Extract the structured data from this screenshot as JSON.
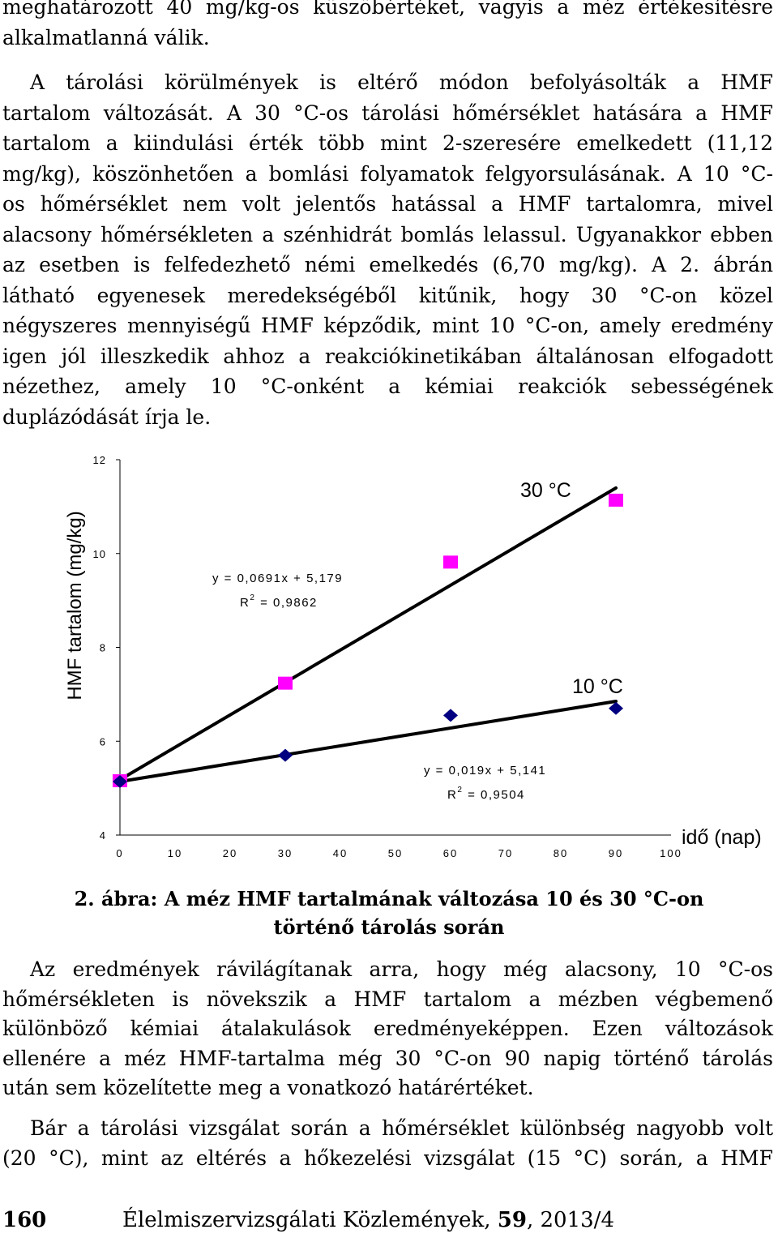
{
  "paragraph1": [
    "meghatározott 40 mg/kg-os küszöbértéket, vagyis a méz értékesítésre",
    "alkalmatlanná válik."
  ],
  "paragraph2": [
    "A tárolási körülmények is eltérő módon befolyásolták a HMF",
    "tartalom változását. A 30 °C-os tárolási hőmérséklet hatására a HMF",
    "tartalom a kiindulási érték több mint 2-szeresére emelkedett (11,12",
    "mg/kg), köszönhetően a bomlási folyamatok felgyorsulásának. A 10 °C-",
    "os hőmérséklet nem volt jelentős hatással a HMF tartalomra, mivel",
    "alacsony hőmérsékleten a szénhidrát bomlás lelassul. Ugyanakkor ebben",
    "az esetben is felfedezhető némi emelkedés (6,70 mg/kg). A 2. ábrán",
    "látható egyenesek meredekségéből kitűnik, hogy 30 °C-on közel",
    "négyszeres mennyiségű HMF képződik, mint 10 °C-on, amely eredmény",
    "igen jól illeszkedik ahhoz a reakciókinetikában általánosan elfogadott",
    "nézethez, amely 10 °C-onként a kémiai reakciók sebességének",
    "duplázódását írja le."
  ],
  "chart_data": {
    "type": "scatter",
    "ylabel": "HMF tartalom (mg/kg)",
    "xlabel": "idő (nap)",
    "xlim": [
      0,
      100
    ],
    "ylim": [
      4,
      12
    ],
    "x_ticks": [
      "0",
      "10",
      "20",
      "30",
      "40",
      "50",
      "60",
      "70",
      "80",
      "90",
      "100"
    ],
    "y_ticks": [
      "4",
      "6",
      "8",
      "10",
      "12"
    ],
    "series": [
      {
        "name": "30 °C",
        "marker": "square",
        "color": "#ff00ff",
        "x": [
          0,
          30,
          60,
          90
        ],
        "y": [
          5.14,
          7.22,
          9.8,
          11.12
        ],
        "trendline": {
          "slope": 0.0691,
          "intercept": 5.179,
          "x_range": [
            0,
            90
          ]
        },
        "equation": "y = 0,0691x + 5,179",
        "r2_label": "R",
        "r2_sup": "2",
        "r2_value": " = 0,9862"
      },
      {
        "name": "10 °C",
        "marker": "diamond",
        "color": "#000080",
        "x": [
          0,
          30,
          60,
          90
        ],
        "y": [
          5.14,
          5.7,
          6.55,
          6.7
        ],
        "trendline": {
          "slope": 0.019,
          "intercept": 5.141,
          "x_range": [
            0,
            90
          ]
        },
        "equation": "y = 0,019x + 5,141",
        "r2_label": "R",
        "r2_sup": "2",
        "r2_value": " = 0,9504"
      }
    ],
    "grid": false
  },
  "caption": [
    "2. ábra: A méz HMF tartalmának változása 10 és 30 °C-on",
    "történő tárolás során"
  ],
  "paragraph3": [
    "Az eredmények rávilágítanak arra, hogy még alacsony, 10 °C-os",
    "hőmérsékleten is növekszik a HMF tartalom a mézben végbemenő",
    "különböző kémiai átalakulások eredményeképpen. Ezen változások",
    "ellenére a méz HMF-tartalma még 30 °C-on 90 napig történő tárolás",
    "után sem közelítette meg a vonatkozó határértéket."
  ],
  "paragraph4": [
    "Bár a tárolási vizsgálat során a hőmérséklet különbség nagyobb volt",
    "(20 °C), mint az eltérés a hőkezelési vizsgálat (15 °C) során, a HMF"
  ],
  "footer": {
    "page_number": "160",
    "journal": "Élelmiszervizsgálati Közlemények, ",
    "volume": "59",
    "issue": ", 2013/4"
  }
}
